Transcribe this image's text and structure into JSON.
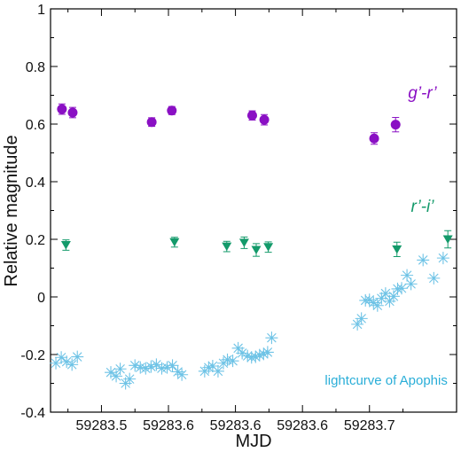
{
  "chart_data": {
    "type": "scatter",
    "title": "",
    "xlabel": "MJD",
    "ylabel": "Relative magnitude",
    "xlim": [
      59283.462,
      59283.765
    ],
    "ylim": [
      -0.4,
      1.0
    ],
    "x_ticks": [
      59283.5,
      59283.55,
      59283.6,
      59283.65,
      59283.7
    ],
    "x_tick_labels": [
      "59283.5",
      "59283.6",
      "59283.6",
      "59283.6",
      "59283.7"
    ],
    "y_ticks": [
      -0.4,
      -0.2,
      0,
      0.2,
      0.4,
      0.6,
      0.8,
      1
    ],
    "y_tick_labels": [
      "-0.4",
      "-0.2",
      "0",
      "0.2",
      "0.4",
      "0.6",
      "0.8",
      "1"
    ],
    "grid": false,
    "series": [
      {
        "name": "g'-r'",
        "color": "#8a10c4",
        "marker": "circle",
        "points": [
          [
            59283.4705,
            0.652,
            0.018
          ],
          [
            59283.4785,
            0.64,
            0.018
          ],
          [
            59283.5375,
            0.607,
            0.015
          ],
          [
            59283.5525,
            0.647,
            0.014
          ],
          [
            59283.6125,
            0.63,
            0.016
          ],
          [
            59283.6215,
            0.615,
            0.018
          ],
          [
            59283.7035,
            0.55,
            0.02
          ],
          [
            59283.7195,
            0.598,
            0.025
          ]
        ]
      },
      {
        "name": "r'-i'",
        "color": "#139a6a",
        "marker": "triangle-down",
        "points": [
          [
            59283.4735,
            0.18,
            0.018
          ],
          [
            59283.5545,
            0.19,
            0.017
          ],
          [
            59283.5935,
            0.175,
            0.018
          ],
          [
            59283.6065,
            0.188,
            0.02
          ],
          [
            59283.6155,
            0.163,
            0.022
          ],
          [
            59283.6245,
            0.173,
            0.018
          ],
          [
            59283.7205,
            0.165,
            0.025
          ],
          [
            59283.7585,
            0.2,
            0.03
          ]
        ]
      },
      {
        "name": "lightcurve of Apophis",
        "color": "#6ec3e6",
        "marker": "asterisk",
        "points": [
          [
            59283.466,
            -0.23
          ],
          [
            59283.47,
            -0.21
          ],
          [
            59283.474,
            -0.225
          ],
          [
            59283.478,
            -0.235
          ],
          [
            59283.482,
            -0.208
          ],
          [
            59283.507,
            -0.262
          ],
          [
            59283.511,
            -0.275
          ],
          [
            59283.514,
            -0.25
          ],
          [
            59283.518,
            -0.3
          ],
          [
            59283.521,
            -0.285
          ],
          [
            59283.525,
            -0.238
          ],
          [
            59283.529,
            -0.245
          ],
          [
            59283.533,
            -0.248
          ],
          [
            59283.537,
            -0.242
          ],
          [
            59283.541,
            -0.235
          ],
          [
            59283.545,
            -0.248
          ],
          [
            59283.549,
            -0.245
          ],
          [
            59283.553,
            -0.238
          ],
          [
            59283.557,
            -0.26
          ],
          [
            59283.56,
            -0.27
          ],
          [
            59283.577,
            -0.258
          ],
          [
            59283.58,
            -0.245
          ],
          [
            59283.583,
            -0.24
          ],
          [
            59283.587,
            -0.258
          ],
          [
            59283.591,
            -0.23
          ],
          [
            59283.594,
            -0.218
          ],
          [
            59283.598,
            -0.222
          ],
          [
            59283.602,
            -0.178
          ],
          [
            59283.605,
            -0.195
          ],
          [
            59283.609,
            -0.205
          ],
          [
            59283.612,
            -0.21
          ],
          [
            59283.615,
            -0.208
          ],
          [
            59283.618,
            -0.202
          ],
          [
            59283.621,
            -0.198
          ],
          [
            59283.624,
            -0.192
          ],
          [
            59283.627,
            -0.142
          ],
          [
            59283.691,
            -0.095
          ],
          [
            59283.694,
            -0.075
          ],
          [
            59283.697,
            -0.012
          ],
          [
            59283.7,
            -0.01
          ],
          [
            59283.703,
            -0.02
          ],
          [
            59283.706,
            -0.03
          ],
          [
            59283.709,
            -0.005
          ],
          [
            59283.712,
            0.012
          ],
          [
            59283.715,
            -0.015
          ],
          [
            59283.718,
            0.002
          ],
          [
            59283.721,
            0.028
          ],
          [
            59283.724,
            0.03
          ],
          [
            59283.728,
            0.075
          ],
          [
            59283.731,
            0.045
          ],
          [
            59283.74,
            0.128
          ],
          [
            59283.748,
            0.065
          ],
          [
            59283.755,
            0.135
          ]
        ]
      }
    ],
    "annotations": [
      {
        "text": "g’-r’",
        "x": 59283.7395,
        "y": 0.69,
        "color": "#8a10c4",
        "style": "italic"
      },
      {
        "text": "r’-i’",
        "x": 59283.7395,
        "y": 0.295,
        "color": "#139a6a",
        "style": "italic"
      },
      {
        "text": "lightcurve of Apophis",
        "x": 59283.7125,
        "y": -0.305,
        "color": "#2aaed8",
        "style": "normal"
      }
    ]
  }
}
